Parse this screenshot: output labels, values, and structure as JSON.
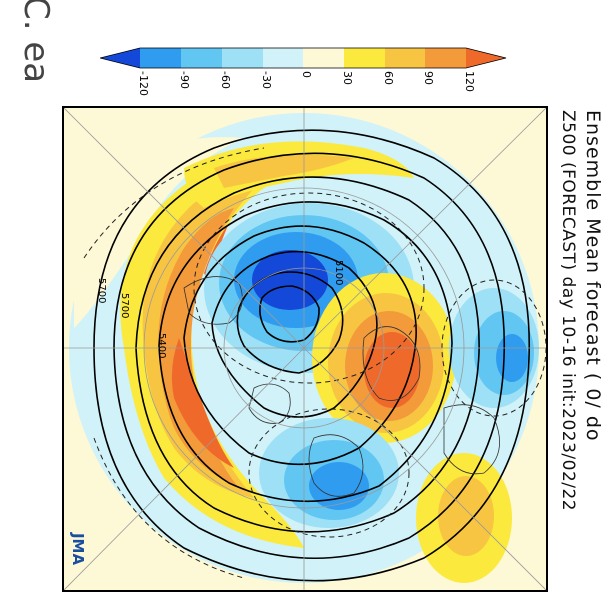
{
  "title": {
    "line1": "Ensemble Mean forecast ( 0/ do",
    "line2": "Z500 (FORECAST) day 10-16 init:2023/02/22"
  },
  "corner_text": "C.\nea",
  "colorbar": {
    "ticks": [
      "-120",
      "-90",
      "-60",
      "-30",
      "0",
      "30",
      "60",
      "90",
      "120"
    ],
    "colors": [
      "#1448d8",
      "#2f9cf0",
      "#62c6f3",
      "#9ee0f6",
      "#d0f2f8",
      "#fdf8d6",
      "#fbe93e",
      "#f7c542",
      "#f39a3a",
      "#ef6a2a"
    ]
  },
  "map": {
    "contour_labels": [
      "5700",
      "5700",
      "5400",
      "5100"
    ]
  },
  "logo": {
    "text": "JMA"
  }
}
